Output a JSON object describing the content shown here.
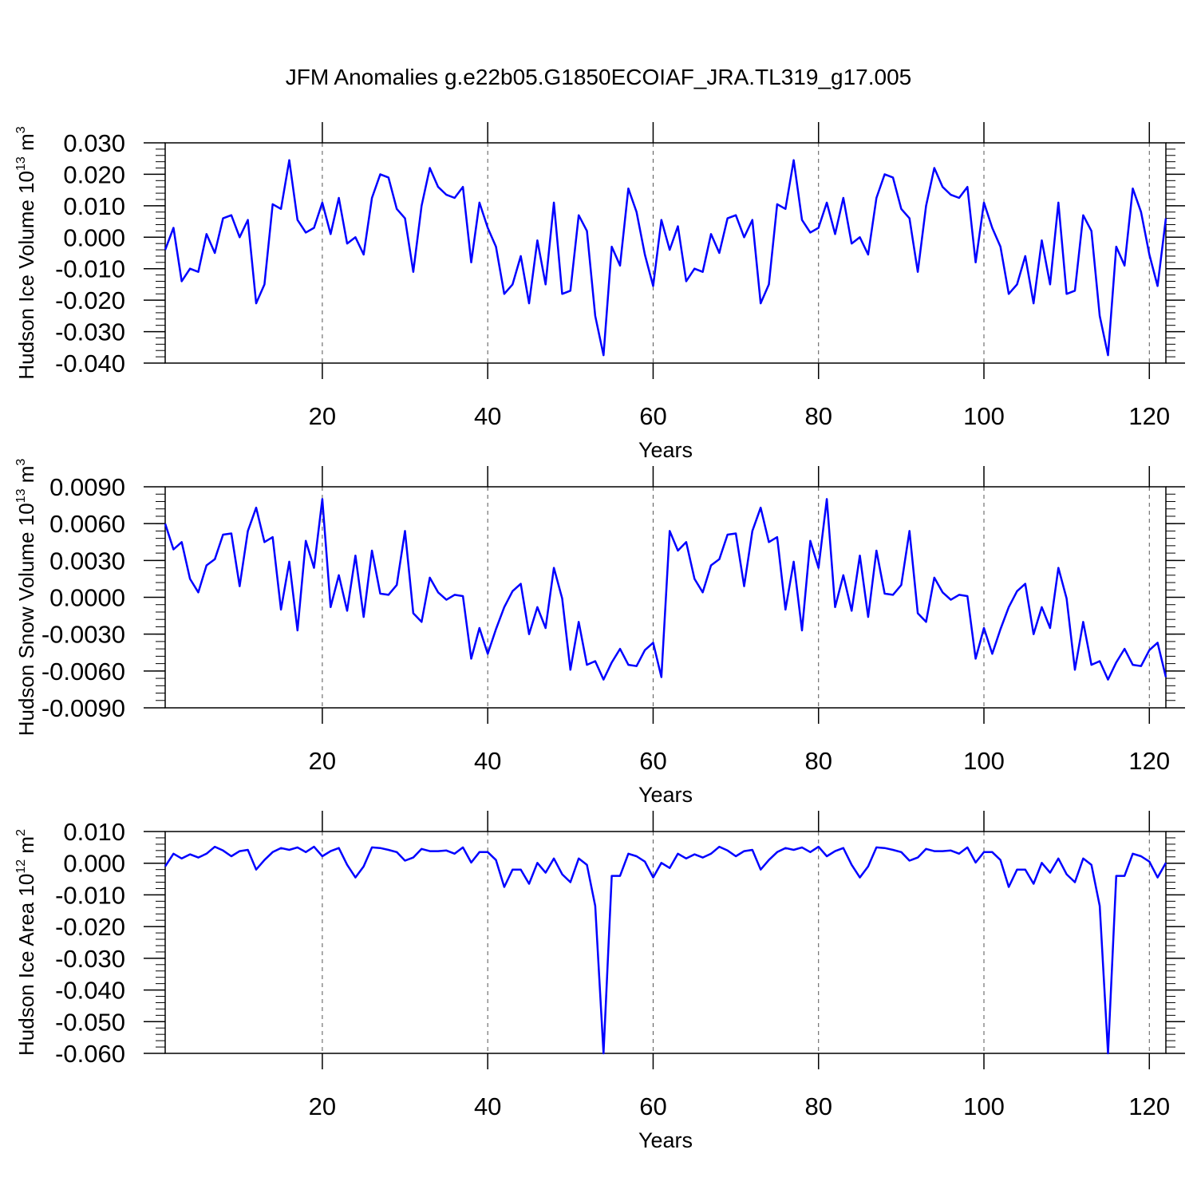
{
  "title": "JFM Anomalies g.e22b05.G1850ECOIAF_JRA.TL319_g17.005",
  "colors": {
    "series": "#0000ff",
    "axis": "#000000",
    "refline": "#555555"
  },
  "chart_data": [
    {
      "type": "line",
      "ylabel": "Hudson Ice Volume 10",
      "ylabel_exp": "13",
      "ylabel_unit": " m",
      "ylabel_unit_exp": "3",
      "xlabel": "Years",
      "xlim": [
        1,
        122
      ],
      "ylim": [
        -0.04,
        0.03
      ],
      "xticks": [
        20,
        40,
        60,
        80,
        100,
        120
      ],
      "yticks": [
        0.03,
        0.02,
        0.01,
        0.0,
        -0.01,
        -0.02,
        -0.03,
        -0.04
      ],
      "ytick_labels": [
        "0.030",
        "0.020",
        "0.010",
        "0.000",
        "-0.010",
        "-0.020",
        "-0.030",
        "-0.040"
      ],
      "yminor_step": 0.002,
      "reference_lines_x": [
        20,
        40,
        60,
        80,
        100,
        120
      ],
      "x_start": 1,
      "values": [
        -0.004,
        0.003,
        -0.014,
        -0.01,
        -0.011,
        0.001,
        -0.005,
        0.006,
        0.007,
        0.0,
        0.0055,
        -0.021,
        -0.015,
        0.0105,
        0.009,
        0.0245,
        0.0055,
        0.0015,
        0.003,
        0.011,
        0.001,
        0.0125,
        -0.002,
        0.0,
        -0.0055,
        0.0125,
        0.02,
        0.019,
        0.009,
        0.006,
        -0.011,
        0.01,
        0.022,
        0.016,
        0.0135,
        0.0125,
        0.016,
        -0.008,
        0.011,
        0.003,
        -0.003,
        -0.018,
        -0.015,
        -0.006,
        -0.021,
        -0.001,
        -0.015,
        0.011,
        -0.018,
        -0.017,
        0.007,
        0.002,
        -0.025,
        -0.0375,
        -0.003,
        -0.009,
        0.0155,
        0.008,
        -0.0055,
        -0.0155,
        0.0055,
        -0.004,
        0.0035,
        -0.014,
        -0.01,
        -0.011,
        0.001,
        -0.005,
        0.006,
        0.007,
        0.0,
        0.0055,
        -0.021,
        -0.015,
        0.0105,
        0.009,
        0.0245,
        0.0055,
        0.0015,
        0.003,
        0.011,
        0.001,
        0.0125,
        -0.002,
        0.0,
        -0.0055,
        0.0125,
        0.02,
        0.019,
        0.009,
        0.006,
        -0.011,
        0.01,
        0.022,
        0.016,
        0.0135,
        0.0125,
        0.016,
        -0.008,
        0.011,
        0.003,
        -0.003,
        -0.018,
        -0.015,
        -0.006,
        -0.021,
        -0.001,
        -0.015,
        0.011,
        -0.018,
        -0.017,
        0.007,
        0.002,
        -0.025,
        -0.0375,
        -0.003,
        -0.009,
        0.0155,
        0.008,
        -0.0055,
        -0.0155,
        0.006
      ]
    },
    {
      "type": "line",
      "ylabel": "Hudson Snow Volume 10",
      "ylabel_exp": "13",
      "ylabel_unit": " m",
      "ylabel_unit_exp": "3",
      "xlabel": "Years",
      "xlim": [
        1,
        122
      ],
      "ylim": [
        -0.009,
        0.009
      ],
      "xticks": [
        20,
        40,
        60,
        80,
        100,
        120
      ],
      "yticks": [
        0.009,
        0.006,
        0.003,
        0.0,
        -0.003,
        -0.006,
        -0.009
      ],
      "ytick_labels": [
        "0.0090",
        "0.0060",
        "0.0030",
        "0.0000",
        "-0.0030",
        "-0.0060",
        "-0.0090"
      ],
      "yminor_step": 0.0006,
      "reference_lines_x": [
        20,
        40,
        60,
        80,
        100,
        120
      ],
      "x_start": 1,
      "values": [
        0.006,
        0.0039,
        0.0045,
        0.0015,
        0.0004,
        0.0026,
        0.0031,
        0.0051,
        0.0052,
        0.0009,
        0.0054,
        0.0073,
        0.0045,
        0.0049,
        -0.001,
        0.0029,
        -0.0027,
        0.0046,
        0.0024,
        0.008,
        -0.0008,
        0.0018,
        -0.0011,
        0.0034,
        -0.0016,
        0.0038,
        0.0003,
        0.0002,
        0.001,
        0.0054,
        -0.0013,
        -0.002,
        0.0016,
        0.0004,
        -0.0002,
        0.0002,
        0.0001,
        -0.005,
        -0.0025,
        -0.0046,
        -0.0026,
        -0.0008,
        0.0005,
        0.0011,
        -0.003,
        -0.0008,
        -0.0025,
        0.0024,
        -0.0001,
        -0.0059,
        -0.002,
        -0.0055,
        -0.0052,
        -0.0067,
        -0.0053,
        -0.0042,
        -0.0055,
        -0.0056,
        -0.0043,
        -0.0037,
        -0.0065,
        0.0054,
        0.0038,
        0.0045,
        0.0015,
        0.0004,
        0.0026,
        0.0031,
        0.0051,
        0.0052,
        0.0009,
        0.0054,
        0.0073,
        0.0045,
        0.0049,
        -0.001,
        0.0029,
        -0.0027,
        0.0046,
        0.0024,
        0.008,
        -0.0008,
        0.0018,
        -0.0011,
        0.0034,
        -0.0016,
        0.0038,
        0.0003,
        0.0002,
        0.001,
        0.0054,
        -0.0013,
        -0.002,
        0.0016,
        0.0004,
        -0.0002,
        0.0002,
        0.0001,
        -0.005,
        -0.0025,
        -0.0046,
        -0.0026,
        -0.0008,
        0.0005,
        0.0011,
        -0.003,
        -0.0008,
        -0.0025,
        0.0024,
        -0.0001,
        -0.0059,
        -0.002,
        -0.0055,
        -0.0052,
        -0.0067,
        -0.0053,
        -0.0042,
        -0.0055,
        -0.0056,
        -0.0043,
        -0.0037,
        -0.0065
      ]
    },
    {
      "type": "line",
      "ylabel": "Hudson Ice Area 10",
      "ylabel_exp": "12",
      "ylabel_unit": " m",
      "ylabel_unit_exp": "2",
      "xlabel": "Years",
      "xlim": [
        1,
        122
      ],
      "ylim": [
        -0.06,
        0.01
      ],
      "xticks": [
        20,
        40,
        60,
        80,
        100,
        120
      ],
      "yticks": [
        0.01,
        0.0,
        -0.01,
        -0.02,
        -0.03,
        -0.04,
        -0.05,
        -0.06
      ],
      "ytick_labels": [
        "0.010",
        "0.000",
        "-0.010",
        "-0.020",
        "-0.030",
        "-0.040",
        "-0.050",
        "-0.060"
      ],
      "yminor_step": 0.002,
      "reference_lines_x": [
        20,
        40,
        60,
        80,
        100,
        120
      ],
      "x_start": 1,
      "values": [
        -0.001,
        0.003,
        0.0015,
        0.0028,
        0.0018,
        0.003,
        0.0052,
        0.004,
        0.0022,
        0.0038,
        0.0042,
        -0.002,
        0.001,
        0.0035,
        0.0048,
        0.0042,
        0.005,
        0.0035,
        0.0052,
        0.0022,
        0.0038,
        0.0048,
        -0.0005,
        -0.0045,
        -0.001,
        0.005,
        0.0048,
        0.0042,
        0.0035,
        0.0008,
        0.0018,
        0.0045,
        0.0038,
        0.0038,
        0.004,
        0.003,
        0.005,
        0.0002,
        0.0035,
        0.0035,
        0.001,
        -0.0075,
        -0.002,
        -0.002,
        -0.0065,
        0.0001,
        -0.003,
        0.0015,
        -0.0035,
        -0.006,
        0.0015,
        -0.0005,
        -0.0135,
        -0.06,
        -0.004,
        -0.004,
        0.003,
        0.0022,
        0.0005,
        -0.0045,
        0.0001,
        -0.0015,
        0.003,
        0.0015,
        0.0028,
        0.0018,
        0.003,
        0.0052,
        0.004,
        0.0022,
        0.0038,
        0.0042,
        -0.002,
        0.001,
        0.0035,
        0.0048,
        0.0042,
        0.005,
        0.0035,
        0.0052,
        0.0022,
        0.0038,
        0.0048,
        -0.0005,
        -0.0045,
        -0.001,
        0.005,
        0.0048,
        0.0042,
        0.0035,
        0.0008,
        0.0018,
        0.0045,
        0.0038,
        0.0038,
        0.004,
        0.003,
        0.005,
        0.0002,
        0.0035,
        0.0035,
        0.001,
        -0.0075,
        -0.002,
        -0.002,
        -0.0065,
        0.0001,
        -0.003,
        0.0015,
        -0.0035,
        -0.006,
        0.0015,
        -0.0005,
        -0.0135,
        -0.06,
        -0.004,
        -0.004,
        0.003,
        0.0022,
        0.0005,
        -0.0045,
        0.0001
      ]
    }
  ]
}
